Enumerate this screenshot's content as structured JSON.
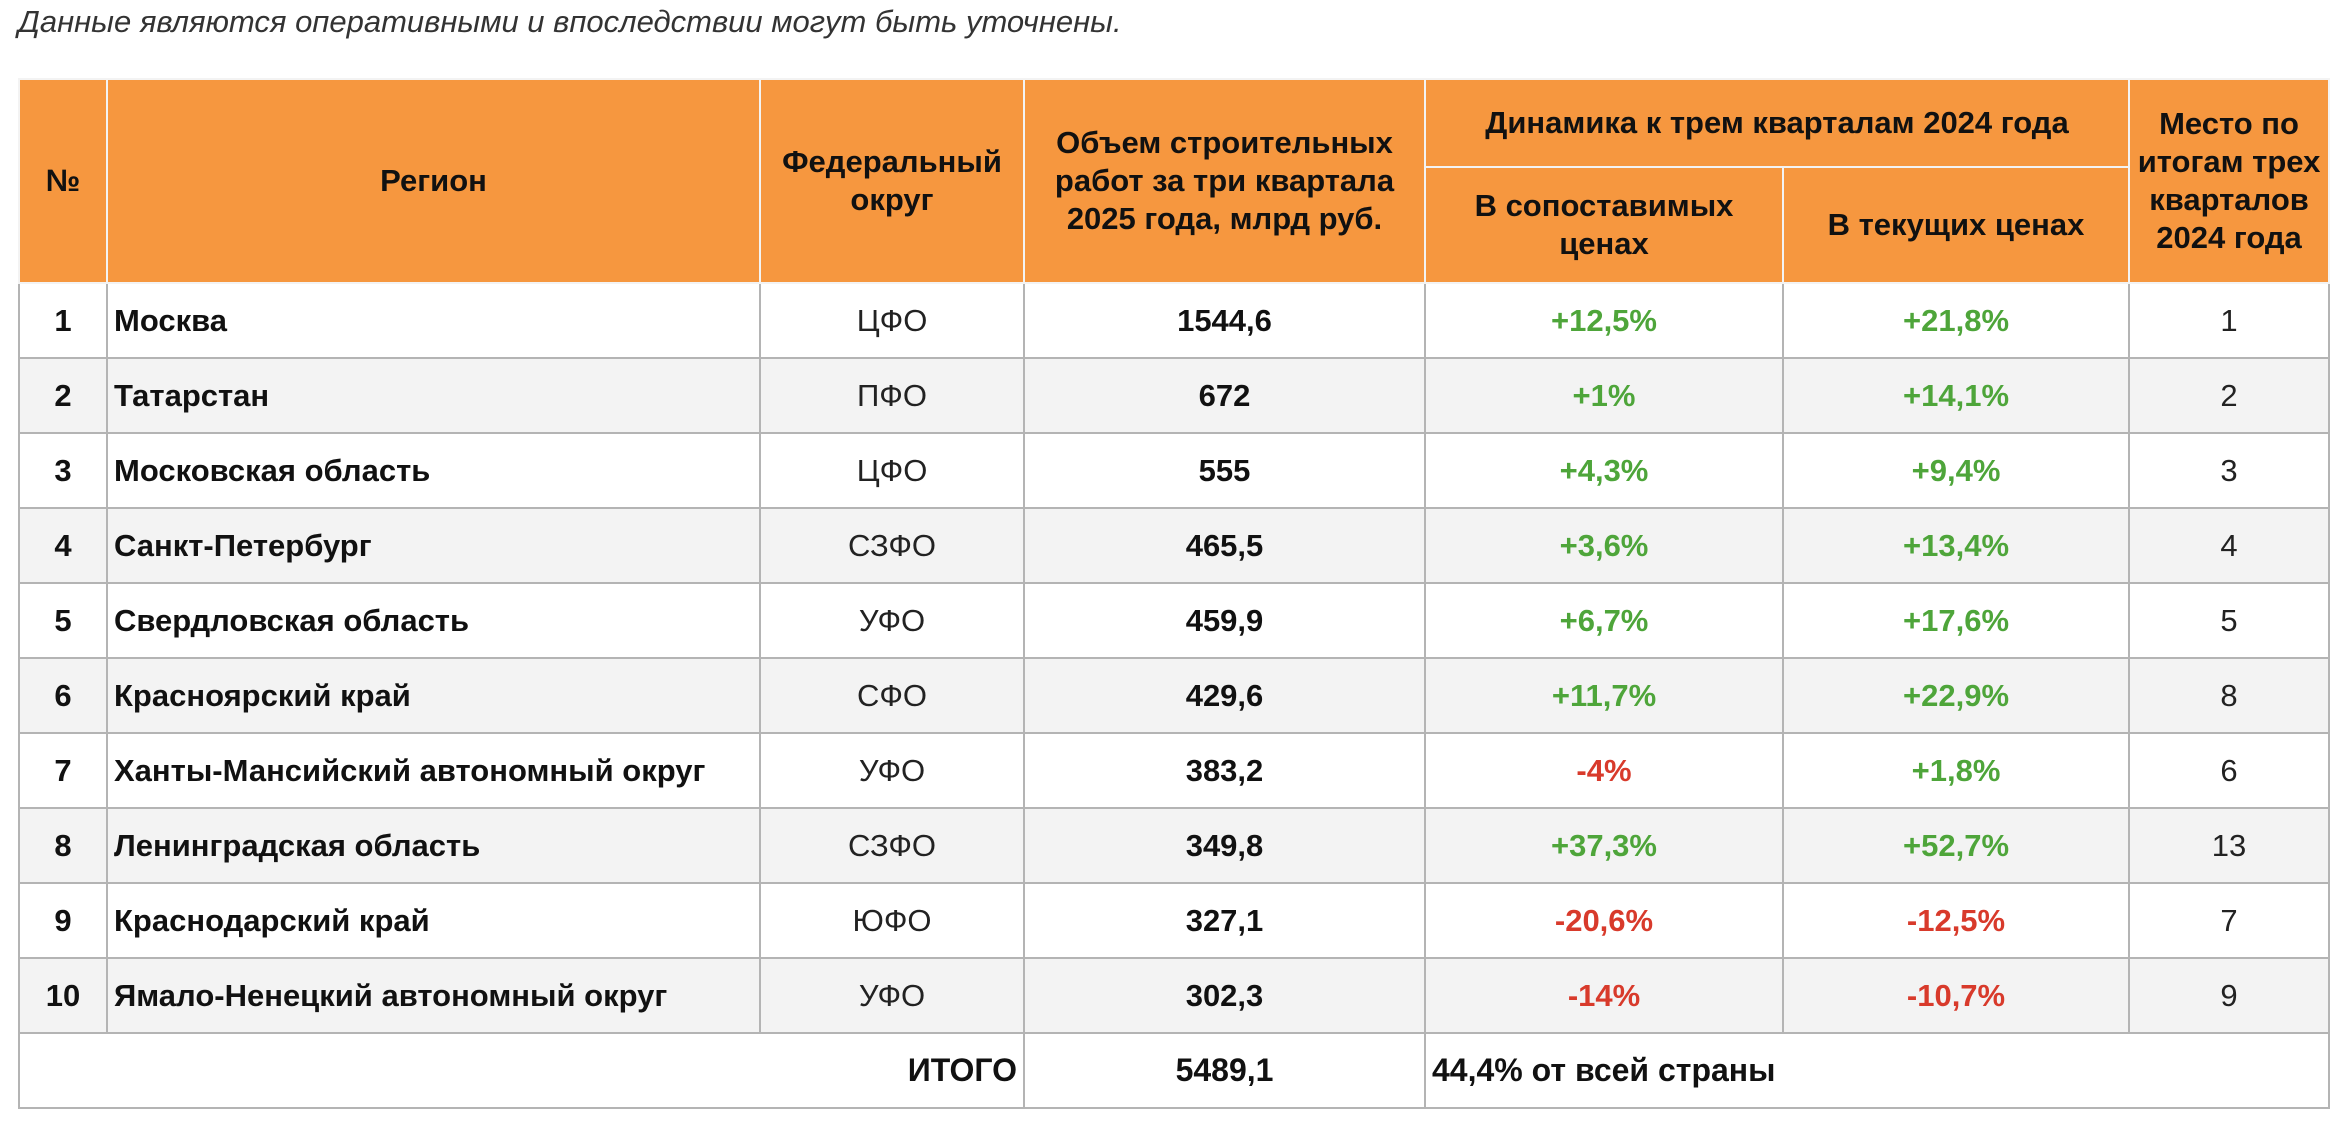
{
  "note": "Данные являются оперативными и впоследствии могут быть уточнены.",
  "header": {
    "num": "№",
    "region": "Регион",
    "federal_district": "Федеральный округ",
    "volume": "Объем строительных работ за три квартала 2025 года, млрд руб.",
    "dynamics_group": "Динамика к трем кварталам 2024 года",
    "comparable": "В сопоставимых ценах",
    "current": "В текущих ценах",
    "place": "Место по итогам трех кварталов 2024 года"
  },
  "rows": [
    {
      "num": "1",
      "region": "Москва",
      "fd": "ЦФО",
      "volume": "1544,6",
      "comparable": "+12,5%",
      "current": "+21,8%",
      "place": "1"
    },
    {
      "num": "2",
      "region": "Татарстан",
      "fd": "ПФО",
      "volume": "672",
      "comparable": "+1%",
      "current": "+14,1%",
      "place": "2"
    },
    {
      "num": "3",
      "region": "Московская область",
      "fd": "ЦФО",
      "volume": "555",
      "comparable": "+4,3%",
      "current": "+9,4%",
      "place": "3"
    },
    {
      "num": "4",
      "region": "Санкт-Петербург",
      "fd": "СЗФО",
      "volume": "465,5",
      "comparable": "+3,6%",
      "current": "+13,4%",
      "place": "4"
    },
    {
      "num": "5",
      "region": "Свердловская область",
      "fd": "УФО",
      "volume": "459,9",
      "comparable": "+6,7%",
      "current": "+17,6%",
      "place": "5"
    },
    {
      "num": "6",
      "region": "Красноярский край",
      "fd": "СФО",
      "volume": "429,6",
      "comparable": "+11,7%",
      "current": "+22,9%",
      "place": "8"
    },
    {
      "num": "7",
      "region": "Ханты-Мансийский автономный округ",
      "fd": "УФО",
      "volume": "383,2",
      "comparable": "-4%",
      "current": "+1,8%",
      "place": "6"
    },
    {
      "num": "8",
      "region": "Ленинградская область",
      "fd": "СЗФО",
      "volume": "349,8",
      "comparable": "+37,3%",
      "current": "+52,7%",
      "place": "13"
    },
    {
      "num": "9",
      "region": "Краснодарский край",
      "fd": "ЮФО",
      "volume": "327,1",
      "comparable": "-20,6%",
      "current": "-12,5%",
      "place": "7"
    },
    {
      "num": "10",
      "region": "Ямало-Ненецкий автономный округ",
      "fd": "УФО",
      "volume": "302,3",
      "comparable": "-14%",
      "current": "-10,7%",
      "place": "9"
    }
  ],
  "total": {
    "label": "ИТОГО",
    "volume": "5489,1",
    "share": "44,4% от всей страны"
  },
  "colors": {
    "header_bg": "#f6973f",
    "positive": "#4ea53a",
    "negative": "#d83a2b",
    "stripe": "#f3f3f3"
  }
}
